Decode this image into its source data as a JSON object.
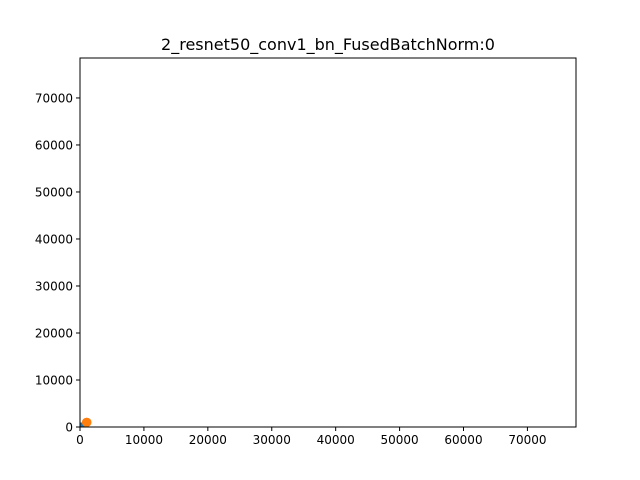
{
  "chart_data": {
    "type": "scatter",
    "title": "2_resnet50_conv1_bn_FusedBatchNorm:0",
    "xlabel": "",
    "ylabel": "",
    "xlim": [
      0,
      77600
    ],
    "ylim": [
      0,
      78500
    ],
    "xticks": [
      0,
      10000,
      20000,
      30000,
      40000,
      50000,
      60000,
      70000
    ],
    "yticks": [
      0,
      10000,
      20000,
      30000,
      40000,
      50000,
      60000,
      70000
    ],
    "grid": false,
    "series": [
      {
        "color": "#1f77b4",
        "points": [
          [
            0,
            0
          ],
          [
            100,
            0
          ],
          [
            200,
            0
          ]
        ]
      },
      {
        "color": "#ff7f0e",
        "points": [
          [
            1000,
            1000
          ],
          [
            1100,
            1000
          ]
        ]
      }
    ]
  }
}
